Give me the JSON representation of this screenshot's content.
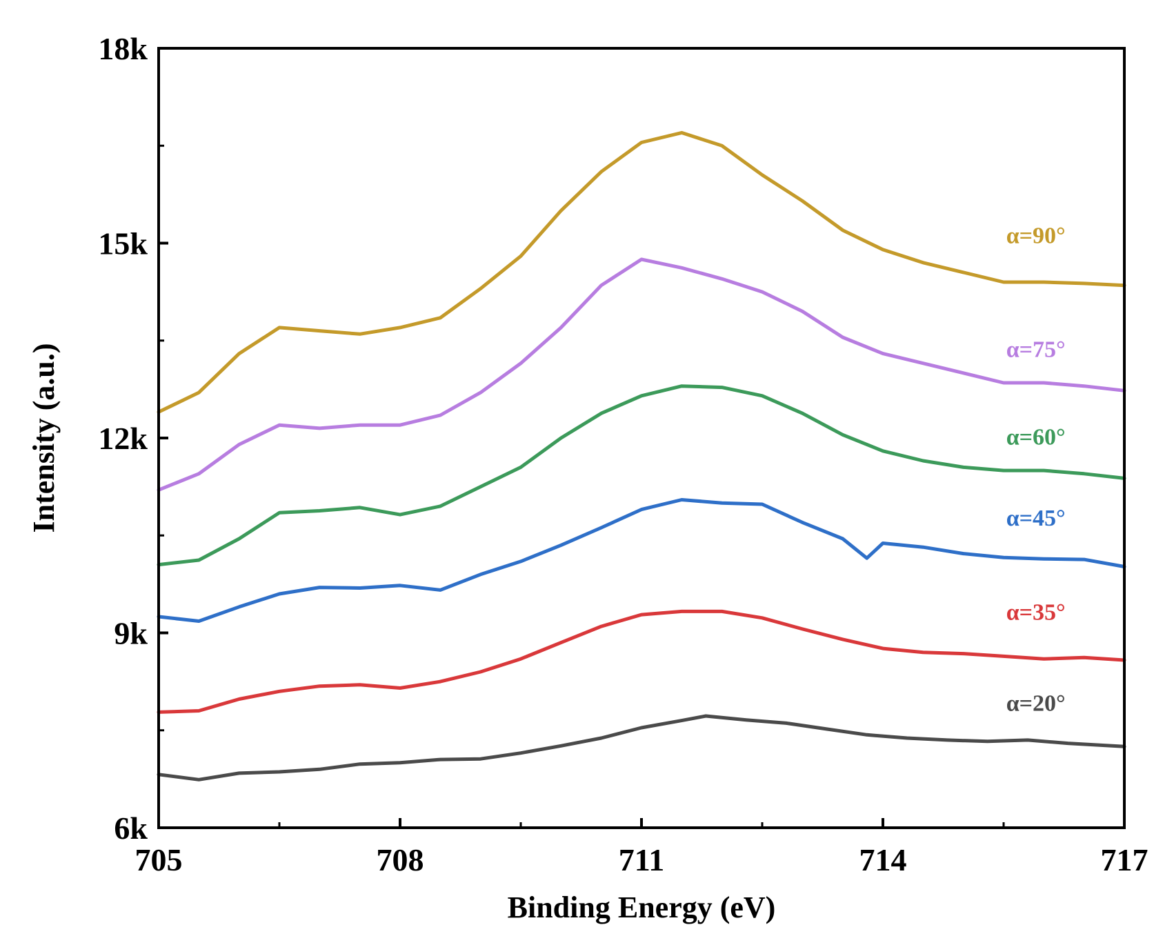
{
  "chart_data": {
    "type": "line",
    "xlabel": "Binding Energy (eV)",
    "ylabel": "Intensity (a.u.)",
    "xlim": [
      705,
      717
    ],
    "ylim": [
      6000,
      18000
    ],
    "x_ticks": [
      705,
      708,
      711,
      714,
      717
    ],
    "y_ticks": [
      {
        "value": 6000,
        "label": "6k"
      },
      {
        "value": 9000,
        "label": "9k"
      },
      {
        "value": 12000,
        "label": "12k"
      },
      {
        "value": 15000,
        "label": "15k"
      },
      {
        "value": 18000,
        "label": "18k"
      }
    ],
    "grid": false,
    "series": [
      {
        "name": "α=20°",
        "color": "#4a4a4a",
        "label_x": 715.9,
        "label_y": 7800,
        "points": [
          [
            705.0,
            6820
          ],
          [
            705.5,
            6740
          ],
          [
            706.0,
            6840
          ],
          [
            706.5,
            6860
          ],
          [
            707.0,
            6900
          ],
          [
            707.5,
            6980
          ],
          [
            708.0,
            7000
          ],
          [
            708.5,
            7050
          ],
          [
            709.0,
            7060
          ],
          [
            709.5,
            7150
          ],
          [
            710.0,
            7260
          ],
          [
            710.5,
            7380
          ],
          [
            711.0,
            7540
          ],
          [
            711.5,
            7650
          ],
          [
            711.8,
            7720
          ],
          [
            712.3,
            7660
          ],
          [
            712.8,
            7610
          ],
          [
            713.3,
            7520
          ],
          [
            713.8,
            7430
          ],
          [
            714.3,
            7380
          ],
          [
            714.8,
            7350
          ],
          [
            715.3,
            7330
          ],
          [
            715.8,
            7350
          ],
          [
            716.3,
            7300
          ],
          [
            717.0,
            7250
          ]
        ]
      },
      {
        "name": "α=35°",
        "color": "#d9383a",
        "label_x": 715.9,
        "label_y": 9200,
        "points": [
          [
            705.0,
            7780
          ],
          [
            705.5,
            7800
          ],
          [
            706.0,
            7980
          ],
          [
            706.5,
            8100
          ],
          [
            707.0,
            8180
          ],
          [
            707.5,
            8200
          ],
          [
            708.0,
            8150
          ],
          [
            708.5,
            8250
          ],
          [
            709.0,
            8400
          ],
          [
            709.5,
            8600
          ],
          [
            710.0,
            8850
          ],
          [
            710.5,
            9100
          ],
          [
            711.0,
            9280
          ],
          [
            711.5,
            9330
          ],
          [
            712.0,
            9330
          ],
          [
            712.5,
            9230
          ],
          [
            713.0,
            9060
          ],
          [
            713.5,
            8900
          ],
          [
            714.0,
            8760
          ],
          [
            714.5,
            8700
          ],
          [
            715.0,
            8680
          ],
          [
            715.5,
            8640
          ],
          [
            716.0,
            8600
          ],
          [
            716.5,
            8620
          ],
          [
            717.0,
            8580
          ]
        ]
      },
      {
        "name": "α=45°",
        "color": "#2e6fc8",
        "label_x": 715.9,
        "label_y": 10650,
        "points": [
          [
            705.0,
            9250
          ],
          [
            705.5,
            9180
          ],
          [
            706.0,
            9400
          ],
          [
            706.5,
            9600
          ],
          [
            707.0,
            9700
          ],
          [
            707.5,
            9690
          ],
          [
            708.0,
            9730
          ],
          [
            708.5,
            9660
          ],
          [
            709.0,
            9900
          ],
          [
            709.5,
            10100
          ],
          [
            710.0,
            10350
          ],
          [
            710.5,
            10620
          ],
          [
            711.0,
            10900
          ],
          [
            711.5,
            11050
          ],
          [
            712.0,
            11000
          ],
          [
            712.5,
            10980
          ],
          [
            713.0,
            10700
          ],
          [
            713.5,
            10450
          ],
          [
            713.8,
            10150
          ],
          [
            714.0,
            10380
          ],
          [
            714.5,
            10320
          ],
          [
            715.0,
            10220
          ],
          [
            715.5,
            10160
          ],
          [
            716.0,
            10140
          ],
          [
            716.5,
            10130
          ],
          [
            717.0,
            10020
          ]
        ]
      },
      {
        "name": "α=60°",
        "color": "#3c9a5a",
        "label_x": 715.9,
        "label_y": 11900,
        "points": [
          [
            705.0,
            10050
          ],
          [
            705.5,
            10120
          ],
          [
            706.0,
            10450
          ],
          [
            706.5,
            10850
          ],
          [
            707.0,
            10880
          ],
          [
            707.5,
            10930
          ],
          [
            708.0,
            10820
          ],
          [
            708.5,
            10950
          ],
          [
            709.0,
            11250
          ],
          [
            709.5,
            11550
          ],
          [
            710.0,
            12000
          ],
          [
            710.5,
            12380
          ],
          [
            711.0,
            12650
          ],
          [
            711.5,
            12800
          ],
          [
            712.0,
            12780
          ],
          [
            712.5,
            12650
          ],
          [
            713.0,
            12380
          ],
          [
            713.5,
            12050
          ],
          [
            714.0,
            11800
          ],
          [
            714.5,
            11650
          ],
          [
            715.0,
            11550
          ],
          [
            715.5,
            11500
          ],
          [
            716.0,
            11500
          ],
          [
            716.5,
            11450
          ],
          [
            717.0,
            11380
          ]
        ]
      },
      {
        "name": "α=75°",
        "color": "#b77de0",
        "label_x": 715.9,
        "label_y": 13250,
        "points": [
          [
            705.0,
            11200
          ],
          [
            705.5,
            11450
          ],
          [
            706.0,
            11900
          ],
          [
            706.5,
            12200
          ],
          [
            707.0,
            12150
          ],
          [
            707.5,
            12200
          ],
          [
            708.0,
            12200
          ],
          [
            708.5,
            12350
          ],
          [
            709.0,
            12700
          ],
          [
            709.5,
            13150
          ],
          [
            710.0,
            13700
          ],
          [
            710.5,
            14350
          ],
          [
            711.0,
            14750
          ],
          [
            711.5,
            14620
          ],
          [
            712.0,
            14450
          ],
          [
            712.5,
            14250
          ],
          [
            713.0,
            13950
          ],
          [
            713.5,
            13550
          ],
          [
            714.0,
            13300
          ],
          [
            714.5,
            13150
          ],
          [
            715.0,
            13000
          ],
          [
            715.5,
            12850
          ],
          [
            716.0,
            12850
          ],
          [
            716.5,
            12800
          ],
          [
            717.0,
            12730
          ]
        ]
      },
      {
        "name": "α=90°",
        "color": "#c49a2a",
        "label_x": 715.9,
        "label_y": 15000,
        "points": [
          [
            705.0,
            12400
          ],
          [
            705.5,
            12700
          ],
          [
            706.0,
            13300
          ],
          [
            706.5,
            13700
          ],
          [
            707.0,
            13650
          ],
          [
            707.5,
            13600
          ],
          [
            708.0,
            13700
          ],
          [
            708.5,
            13850
          ],
          [
            709.0,
            14300
          ],
          [
            709.5,
            14800
          ],
          [
            710.0,
            15500
          ],
          [
            710.5,
            16100
          ],
          [
            711.0,
            16550
          ],
          [
            711.5,
            16700
          ],
          [
            712.0,
            16500
          ],
          [
            712.5,
            16050
          ],
          [
            713.0,
            15650
          ],
          [
            713.5,
            15200
          ],
          [
            714.0,
            14900
          ],
          [
            714.5,
            14700
          ],
          [
            715.0,
            14550
          ],
          [
            715.5,
            14400
          ],
          [
            716.0,
            14400
          ],
          [
            716.5,
            14380
          ],
          [
            717.0,
            14350
          ]
        ]
      }
    ]
  }
}
